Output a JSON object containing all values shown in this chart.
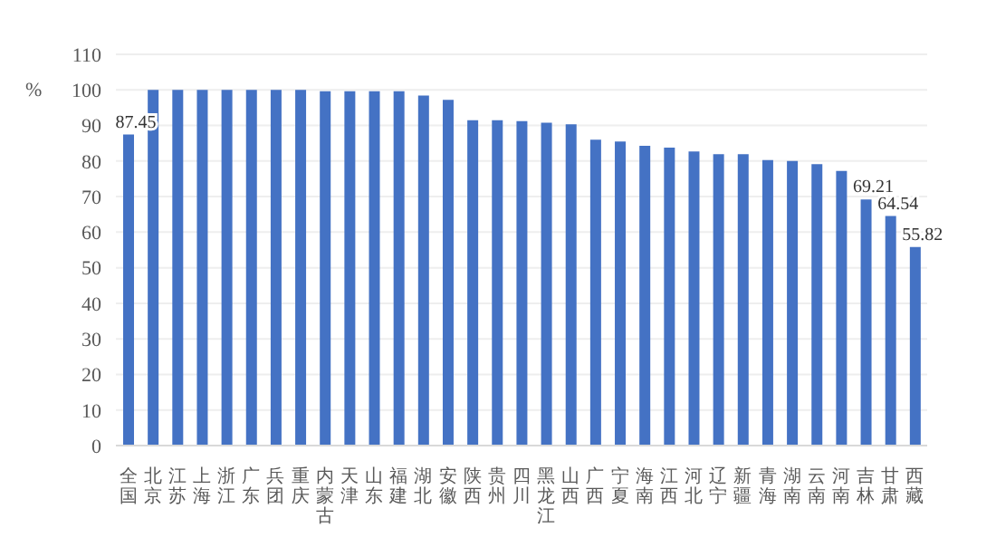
{
  "chart_data": {
    "type": "bar",
    "ylabel": "%",
    "categories": [
      "全国",
      "北京",
      "江苏",
      "上海",
      "浙江",
      "广东",
      "兵团",
      "重庆",
      "内蒙古",
      "天津",
      "山东",
      "福建",
      "湖北",
      "安徽",
      "陕西",
      "贵州",
      "四川",
      "黑龙江",
      "山西",
      "广西",
      "宁夏",
      "海南",
      "江西",
      "河北",
      "辽宁",
      "新疆",
      "青海",
      "湖南",
      "云南",
      "河南",
      "吉林",
      "甘肃",
      "西藏"
    ],
    "values": [
      87.45,
      100,
      100,
      100,
      100,
      100,
      100,
      100,
      99.6,
      99.6,
      99.6,
      99.6,
      98.4,
      97.2,
      91.5,
      91.5,
      91.2,
      90.8,
      90.3,
      86,
      85.5,
      84.3,
      83.8,
      82.7,
      81.9,
      81.9,
      80.3,
      80,
      79.1,
      77.2,
      69.21,
      64.54,
      55.82
    ],
    "value_labels": [
      "87.45",
      null,
      null,
      null,
      null,
      null,
      null,
      null,
      null,
      null,
      null,
      null,
      null,
      null,
      null,
      null,
      null,
      null,
      null,
      null,
      null,
      null,
      null,
      null,
      null,
      null,
      null,
      null,
      null,
      null,
      "69.21",
      "64.54",
      "55.82"
    ],
    "color": "#4472c4",
    "ylim": [
      0,
      110
    ],
    "yticks": [
      0,
      10,
      20,
      30,
      40,
      50,
      60,
      70,
      80,
      90,
      100,
      110
    ],
    "grid": "y"
  }
}
